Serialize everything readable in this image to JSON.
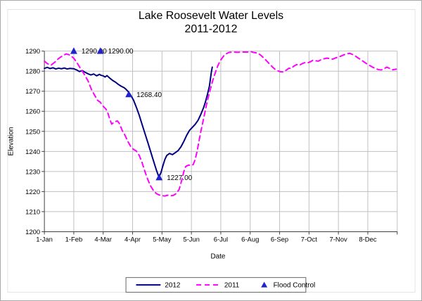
{
  "title": {
    "line1": "Lake Roosevelt Water Levels",
    "line2": "2011-2012"
  },
  "chart_data": {
    "type": "line",
    "title": "Lake Roosevelt Water Levels 2011-2012",
    "xlabel": "Date",
    "ylabel": "Elevation",
    "ylim": [
      1200,
      1290
    ],
    "ytick_step": 10,
    "grid": true,
    "legend_position": "bottom",
    "x_domain_days": [
      1,
      373
    ],
    "x_ticks": [
      {
        "day": 1,
        "label": "1-Jan"
      },
      {
        "day": 32,
        "label": "1-Feb"
      },
      {
        "day": 63,
        "label": "4-Mar"
      },
      {
        "day": 94,
        "label": "4-Apr"
      },
      {
        "day": 125,
        "label": "5-May"
      },
      {
        "day": 156,
        "label": "5-Jun"
      },
      {
        "day": 187,
        "label": "6-Jul"
      },
      {
        "day": 218,
        "label": "6-Aug"
      },
      {
        "day": 249,
        "label": "6-Sep"
      },
      {
        "day": 280,
        "label": "7-Oct"
      },
      {
        "day": 311,
        "label": "7-Nov"
      },
      {
        "day": 342,
        "label": "8-Dec"
      }
    ],
    "colors": {
      "series_2012": "#000080",
      "series_2011": "#ff00ff",
      "flood_control": "#2222cc",
      "gridline": "#c0c0c0",
      "axis": "#404040",
      "inner_border": "#e3e3e3"
    },
    "series": [
      {
        "name": "2012",
        "style": "solid",
        "points": [
          [
            1,
            1281.4
          ],
          [
            4,
            1281.9
          ],
          [
            7,
            1281.3
          ],
          [
            10,
            1281.7
          ],
          [
            13,
            1281.1
          ],
          [
            16,
            1281.5
          ],
          [
            19,
            1281.2
          ],
          [
            22,
            1281.6
          ],
          [
            25,
            1281.1
          ],
          [
            28,
            1281.4
          ],
          [
            32,
            1281.2
          ],
          [
            35,
            1280.6
          ],
          [
            38,
            1279.8
          ],
          [
            41,
            1280.3
          ],
          [
            44,
            1279.4
          ],
          [
            47,
            1278.7
          ],
          [
            50,
            1278.1
          ],
          [
            53,
            1278.6
          ],
          [
            56,
            1277.7
          ],
          [
            59,
            1278.4
          ],
          [
            61,
            1277.9
          ],
          [
            63,
            1277.7
          ],
          [
            65,
            1277.1
          ],
          [
            67,
            1277.8
          ],
          [
            70,
            1276.5
          ],
          [
            73,
            1275.4
          ],
          [
            76,
            1274.5
          ],
          [
            79,
            1273.4
          ],
          [
            82,
            1272.5
          ],
          [
            85,
            1271.8
          ],
          [
            87,
            1271
          ],
          [
            89,
            1270
          ],
          [
            91,
            1268.8
          ],
          [
            93,
            1267.3
          ],
          [
            95,
            1265.5
          ],
          [
            98,
            1262
          ],
          [
            101,
            1258
          ],
          [
            104,
            1253.5
          ],
          [
            107,
            1249
          ],
          [
            110,
            1244.5
          ],
          [
            113,
            1240
          ],
          [
            115,
            1236.8
          ],
          [
            117,
            1233.8
          ],
          [
            119,
            1230.8
          ],
          [
            121,
            1228.2
          ],
          [
            122,
            1227.3
          ],
          [
            124,
            1229.5
          ],
          [
            126,
            1233
          ],
          [
            128,
            1236
          ],
          [
            130,
            1238
          ],
          [
            133,
            1239
          ],
          [
            136,
            1238.4
          ],
          [
            139,
            1239.4
          ],
          [
            142,
            1240.4
          ],
          [
            145,
            1242.3
          ],
          [
            148,
            1245
          ],
          [
            151,
            1248
          ],
          [
            154,
            1250.5
          ],
          [
            157,
            1252
          ],
          [
            160,
            1253.5
          ],
          [
            163,
            1255.5
          ],
          [
            166,
            1258.5
          ],
          [
            169,
            1262
          ],
          [
            171,
            1265
          ],
          [
            173,
            1268.5
          ],
          [
            175,
            1272.5
          ],
          [
            176,
            1276
          ],
          [
            177,
            1279.5
          ],
          [
            178,
            1282
          ]
        ]
      },
      {
        "name": "2011",
        "style": "dashed",
        "points": [
          [
            1,
            1285
          ],
          [
            4,
            1283.8
          ],
          [
            8,
            1283
          ],
          [
            12,
            1284.5
          ],
          [
            16,
            1286.3
          ],
          [
            20,
            1287.6
          ],
          [
            24,
            1288.6
          ],
          [
            27,
            1288.2
          ],
          [
            30,
            1287.2
          ],
          [
            32,
            1286.4
          ],
          [
            35,
            1284.5
          ],
          [
            38,
            1282.2
          ],
          [
            41,
            1280
          ],
          [
            44,
            1277.6
          ],
          [
            47,
            1275.2
          ],
          [
            51,
            1270.5
          ],
          [
            54,
            1268
          ],
          [
            57,
            1265.5
          ],
          [
            60,
            1264.5
          ],
          [
            63,
            1262.5
          ],
          [
            66,
            1261
          ],
          [
            68,
            1259
          ],
          [
            70,
            1256
          ],
          [
            72,
            1253.6
          ],
          [
            75,
            1254.8
          ],
          [
            78,
            1255.2
          ],
          [
            80,
            1254
          ],
          [
            83,
            1250.5
          ],
          [
            86,
            1248
          ],
          [
            89,
            1245
          ],
          [
            92,
            1242.5
          ],
          [
            95,
            1241
          ],
          [
            98,
            1240.2
          ],
          [
            101,
            1238
          ],
          [
            104,
            1234.5
          ],
          [
            107,
            1230
          ],
          [
            110,
            1226
          ],
          [
            113,
            1222.8
          ],
          [
            116,
            1220.5
          ],
          [
            119,
            1219
          ],
          [
            122,
            1218.3
          ],
          [
            125,
            1218
          ],
          [
            128,
            1217.8
          ],
          [
            131,
            1218.2
          ],
          [
            134,
            1217.9
          ],
          [
            137,
            1218.1
          ],
          [
            140,
            1219
          ],
          [
            143,
            1221
          ],
          [
            146,
            1226
          ],
          [
            148,
            1230
          ],
          [
            150,
            1232.5
          ],
          [
            153,
            1233.2
          ],
          [
            156,
            1233
          ],
          [
            158,
            1233.5
          ],
          [
            160,
            1236
          ],
          [
            162,
            1240
          ],
          [
            164,
            1245
          ],
          [
            166,
            1250
          ],
          [
            168,
            1254.5
          ],
          [
            170,
            1259
          ],
          [
            172,
            1263.5
          ],
          [
            174,
            1267.5
          ],
          [
            176,
            1271
          ],
          [
            178,
            1274.5
          ],
          [
            180,
            1277.5
          ],
          [
            182,
            1280.3
          ],
          [
            184,
            1282.8
          ],
          [
            186,
            1284.8
          ],
          [
            188,
            1286.3
          ],
          [
            190,
            1287.6
          ],
          [
            192,
            1288.4
          ],
          [
            194,
            1289
          ],
          [
            196,
            1289.4
          ],
          [
            200,
            1289.5
          ],
          [
            205,
            1289.4
          ],
          [
            210,
            1289.5
          ],
          [
            215,
            1289.5
          ],
          [
            219,
            1289.7
          ],
          [
            222,
            1289.3
          ],
          [
            226,
            1289
          ],
          [
            229,
            1288
          ],
          [
            232,
            1286.7
          ],
          [
            235,
            1285.3
          ],
          [
            238,
            1283.8
          ],
          [
            241,
            1282.3
          ],
          [
            244,
            1281
          ],
          [
            247,
            1280.2
          ],
          [
            250,
            1279.7
          ],
          [
            253,
            1279.6
          ],
          [
            256,
            1280.5
          ],
          [
            259,
            1281.5
          ],
          [
            261,
            1281.3
          ],
          [
            264,
            1282.5
          ],
          [
            267,
            1283.3
          ],
          [
            270,
            1283
          ],
          [
            273,
            1283.8
          ],
          [
            276,
            1284.3
          ],
          [
            279,
            1284.2
          ],
          [
            281,
            1284.6
          ],
          [
            284,
            1285.4
          ],
          [
            287,
            1285.2
          ],
          [
            290,
            1285
          ],
          [
            293,
            1285.8
          ],
          [
            296,
            1286.2
          ],
          [
            299,
            1286.5
          ],
          [
            302,
            1286.2
          ],
          [
            305,
            1286
          ],
          [
            308,
            1286.6
          ],
          [
            311,
            1287
          ],
          [
            314,
            1287.6
          ],
          [
            317,
            1288.2
          ],
          [
            320,
            1288.7
          ],
          [
            323,
            1288.9
          ],
          [
            326,
            1288.3
          ],
          [
            329,
            1287.5
          ],
          [
            332,
            1286.5
          ],
          [
            335,
            1285.6
          ],
          [
            338,
            1284.6
          ],
          [
            341,
            1283.6
          ],
          [
            344,
            1282.8
          ],
          [
            347,
            1282
          ],
          [
            350,
            1281.3
          ],
          [
            353,
            1280.8
          ],
          [
            356,
            1280.6
          ],
          [
            359,
            1281.2
          ],
          [
            362,
            1282
          ],
          [
            365,
            1281.4
          ],
          [
            368,
            1280.7
          ],
          [
            372,
            1281
          ]
        ]
      }
    ],
    "flood_control": {
      "name": "Flood Control",
      "markers": [
        {
          "day": 32,
          "elevation": 1290,
          "label": "1290.00"
        },
        {
          "day": 60,
          "elevation": 1290,
          "label": "1290.00"
        },
        {
          "day": 90,
          "elevation": 1268.4,
          "label": "1268.40"
        },
        {
          "day": 122,
          "elevation": 1227,
          "label": "1227.00"
        }
      ]
    }
  }
}
